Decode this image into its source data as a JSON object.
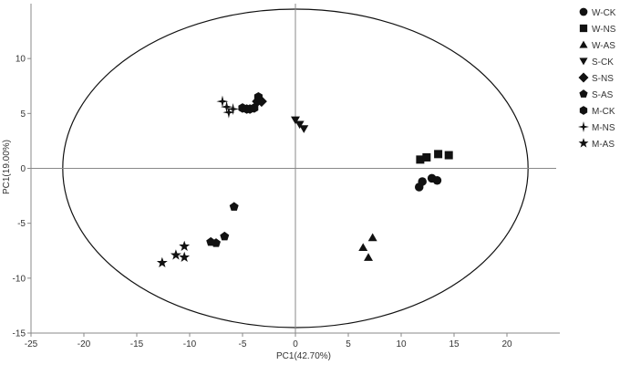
{
  "chart_data": {
    "type": "scatter",
    "title": "",
    "xlabel": "PC1(42.70%)",
    "ylabel": "PC1(19.00%)",
    "xlim": [
      -25,
      25
    ],
    "ylim": [
      -15,
      15
    ],
    "xticks": [
      -25,
      -20,
      -15,
      -10,
      -5,
      0,
      5,
      10,
      15,
      20
    ],
    "yticks": [
      -15,
      -10,
      -5,
      0,
      5,
      10
    ],
    "grid": false,
    "legend_position": "right",
    "zero_lines": true,
    "confidence_ellipse": {
      "center": [
        0,
        0
      ],
      "radius_x": 22,
      "radius_y": 14.5
    },
    "series": [
      {
        "name": "W-CK",
        "marker": "circle",
        "points": [
          [
            11.7,
            -1.7
          ],
          [
            12.0,
            -1.2
          ],
          [
            12.9,
            -0.9
          ],
          [
            13.4,
            -1.1
          ]
        ]
      },
      {
        "name": "W-NS",
        "marker": "square",
        "points": [
          [
            11.8,
            0.8
          ],
          [
            12.4,
            1.0
          ],
          [
            13.5,
            1.3
          ],
          [
            14.5,
            1.2
          ]
        ]
      },
      {
        "name": "W-AS",
        "marker": "triangle-up",
        "points": [
          [
            6.4,
            -7.2
          ],
          [
            7.3,
            -6.3
          ],
          [
            6.9,
            -8.1
          ]
        ]
      },
      {
        "name": "S-CK",
        "marker": "triangle-down",
        "points": [
          [
            0.0,
            4.4
          ],
          [
            0.4,
            4.0
          ],
          [
            0.8,
            3.6
          ]
        ]
      },
      {
        "name": "S-NS",
        "marker": "diamond",
        "points": [
          [
            -3.6,
            6.1
          ],
          [
            -3.2,
            6.1
          ]
        ]
      },
      {
        "name": "S-AS",
        "marker": "pentagon",
        "points": [
          [
            -5.8,
            -3.5
          ],
          [
            -6.7,
            -6.2
          ],
          [
            -7.5,
            -6.8
          ],
          [
            -8.0,
            -6.7
          ]
        ]
      },
      {
        "name": "M-CK",
        "marker": "hexagon",
        "points": [
          [
            -5.0,
            5.5
          ],
          [
            -4.6,
            5.4
          ],
          [
            -4.3,
            5.4
          ],
          [
            -3.9,
            5.5
          ],
          [
            -3.5,
            6.5
          ]
        ]
      },
      {
        "name": "M-NS",
        "marker": "star4",
        "points": [
          [
            -6.9,
            6.1
          ],
          [
            -6.5,
            5.6
          ],
          [
            -6.3,
            5.1
          ],
          [
            -5.9,
            5.4
          ]
        ]
      },
      {
        "name": "M-AS",
        "marker": "star5",
        "points": [
          [
            -12.6,
            -8.6
          ],
          [
            -11.3,
            -7.9
          ],
          [
            -10.5,
            -7.1
          ],
          [
            -10.5,
            -8.1
          ]
        ]
      }
    ]
  }
}
